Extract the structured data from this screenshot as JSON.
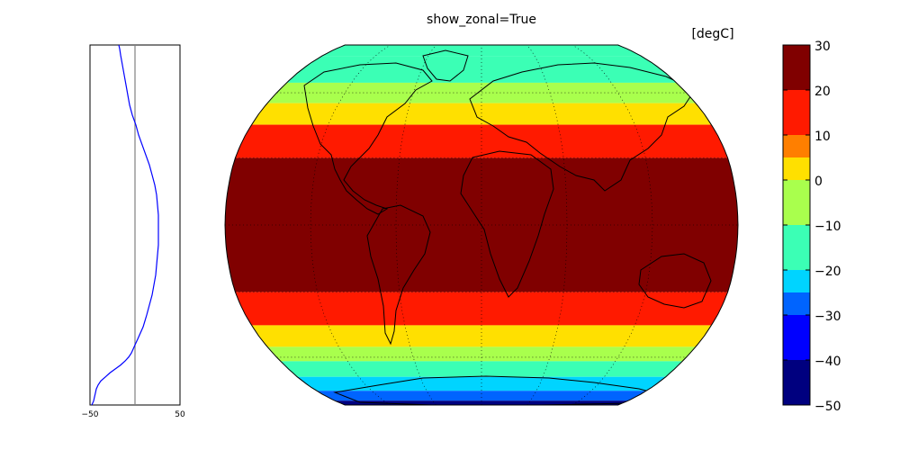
{
  "figure": {
    "title": "show_zonal=True"
  },
  "chart_data": [
    {
      "type": "line",
      "name": "zonal-mean-panel",
      "xlim": [
        -50,
        50
      ],
      "x_ticks": [
        -50,
        50
      ],
      "x_tick_labels": [
        "−50",
        "50"
      ],
      "ylim": [
        -90,
        90
      ],
      "reference_line_x": 0,
      "reference_line_color": "#808080",
      "line_color": "#0000ff",
      "series": [
        {
          "lat": [
            -90,
            -88,
            -86,
            -84,
            -82,
            -80,
            -78,
            -76,
            -74,
            -72,
            -70,
            -68,
            -66,
            -64,
            -62,
            -60,
            -57,
            -54,
            -51,
            -48,
            -45,
            -40,
            -35,
            -30,
            -25,
            -20,
            -15,
            -10,
            -5,
            0,
            5,
            10,
            15,
            20,
            25,
            30,
            35,
            40,
            45,
            50,
            55,
            60,
            65,
            70,
            75,
            80,
            85,
            88,
            90
          ],
          "value": [
            -48,
            -46,
            -45,
            -44,
            -43,
            -41,
            -38,
            -33,
            -28,
            -22,
            -16,
            -11,
            -7,
            -4,
            -2,
            0,
            3,
            6,
            9,
            11,
            13,
            16,
            19,
            21,
            23,
            24,
            25,
            26,
            26,
            26,
            26,
            25,
            24,
            22,
            19,
            16,
            12,
            8,
            4,
            1,
            -3,
            -6,
            -8,
            -10,
            -12,
            -14,
            -16,
            -17,
            -18
          ]
        }
      ]
    },
    {
      "type": "heatmap",
      "name": "robinson-map",
      "projection": "Robinson",
      "units_label": "[degC]",
      "colorbar": {
        "ticks": [
          30,
          20,
          10,
          0,
          -10,
          -20,
          -30,
          -40,
          -50
        ],
        "tick_labels": [
          "30",
          "20",
          "10",
          "0",
          "−10",
          "−20",
          "−30",
          "−40",
          "−50"
        ],
        "bins": [
          {
            "from": 20,
            "to": 30,
            "color": "#800000"
          },
          {
            "from": 15,
            "to": 20,
            "color": "#ff1a00"
          },
          {
            "from": 10,
            "to": 15,
            "color": "#ff1a00"
          },
          {
            "from": 5,
            "to": 10,
            "color": "#ff7f00"
          },
          {
            "from": 0,
            "to": 5,
            "color": "#ffe000"
          },
          {
            "from": -10,
            "to": 0,
            "color": "#a9ff4d"
          },
          {
            "from": -20,
            "to": -10,
            "color": "#3bffb5"
          },
          {
            "from": -25,
            "to": -20,
            "color": "#00d4ff"
          },
          {
            "from": -30,
            "to": -25,
            "color": "#0064ff"
          },
          {
            "from": -40,
            "to": -30,
            "color": "#0000ff"
          },
          {
            "from": -50,
            "to": -40,
            "color": "#00007f"
          }
        ],
        "ramp": [
          {
            "from": -50,
            "to": -40,
            "color": "#00007f"
          },
          {
            "from": -40,
            "to": -35,
            "color": "#0000ff"
          },
          {
            "from": -35,
            "to": -25,
            "color": "#0064ff"
          },
          {
            "from": -25,
            "to": -15,
            "color": "#00d4ff"
          },
          {
            "from": -15,
            "to": -5,
            "color": "#3bffb5"
          },
          {
            "from": -5,
            "to": 5,
            "color": "#a9ff4d"
          },
          {
            "from": 5,
            "to": 10,
            "color": "#ffe000"
          },
          {
            "from": 10,
            "to": 15,
            "color": "#ff7f00"
          },
          {
            "from": 15,
            "to": 20,
            "color": "#ff1a00"
          },
          {
            "from": 20,
            "to": 30,
            "color": "#800000"
          }
        ]
      },
      "latitude_bands": [
        {
          "from": 80,
          "to": 90,
          "value": -12
        },
        {
          "from": 65,
          "to": 80,
          "value": -8
        },
        {
          "from": 55,
          "to": 65,
          "value": 2
        },
        {
          "from": 45,
          "to": 55,
          "value": 8
        },
        {
          "from": 30,
          "to": 45,
          "value": 17
        },
        {
          "from": -30,
          "to": 30,
          "value": 26
        },
        {
          "from": -45,
          "to": -30,
          "value": 17
        },
        {
          "from": -55,
          "to": -45,
          "value": 8
        },
        {
          "from": -62,
          "to": -55,
          "value": 2
        },
        {
          "from": -70,
          "to": -62,
          "value": -10
        },
        {
          "from": -78,
          "to": -70,
          "value": -22
        },
        {
          "from": -85,
          "to": -78,
          "value": -32
        },
        {
          "from": -90,
          "to": -85,
          "value": -45
        }
      ],
      "graticule": {
        "parallels": [
          -60,
          -30,
          0,
          30,
          60
        ],
        "meridians": [
          -120,
          -60,
          0,
          60,
          120
        ]
      }
    }
  ]
}
